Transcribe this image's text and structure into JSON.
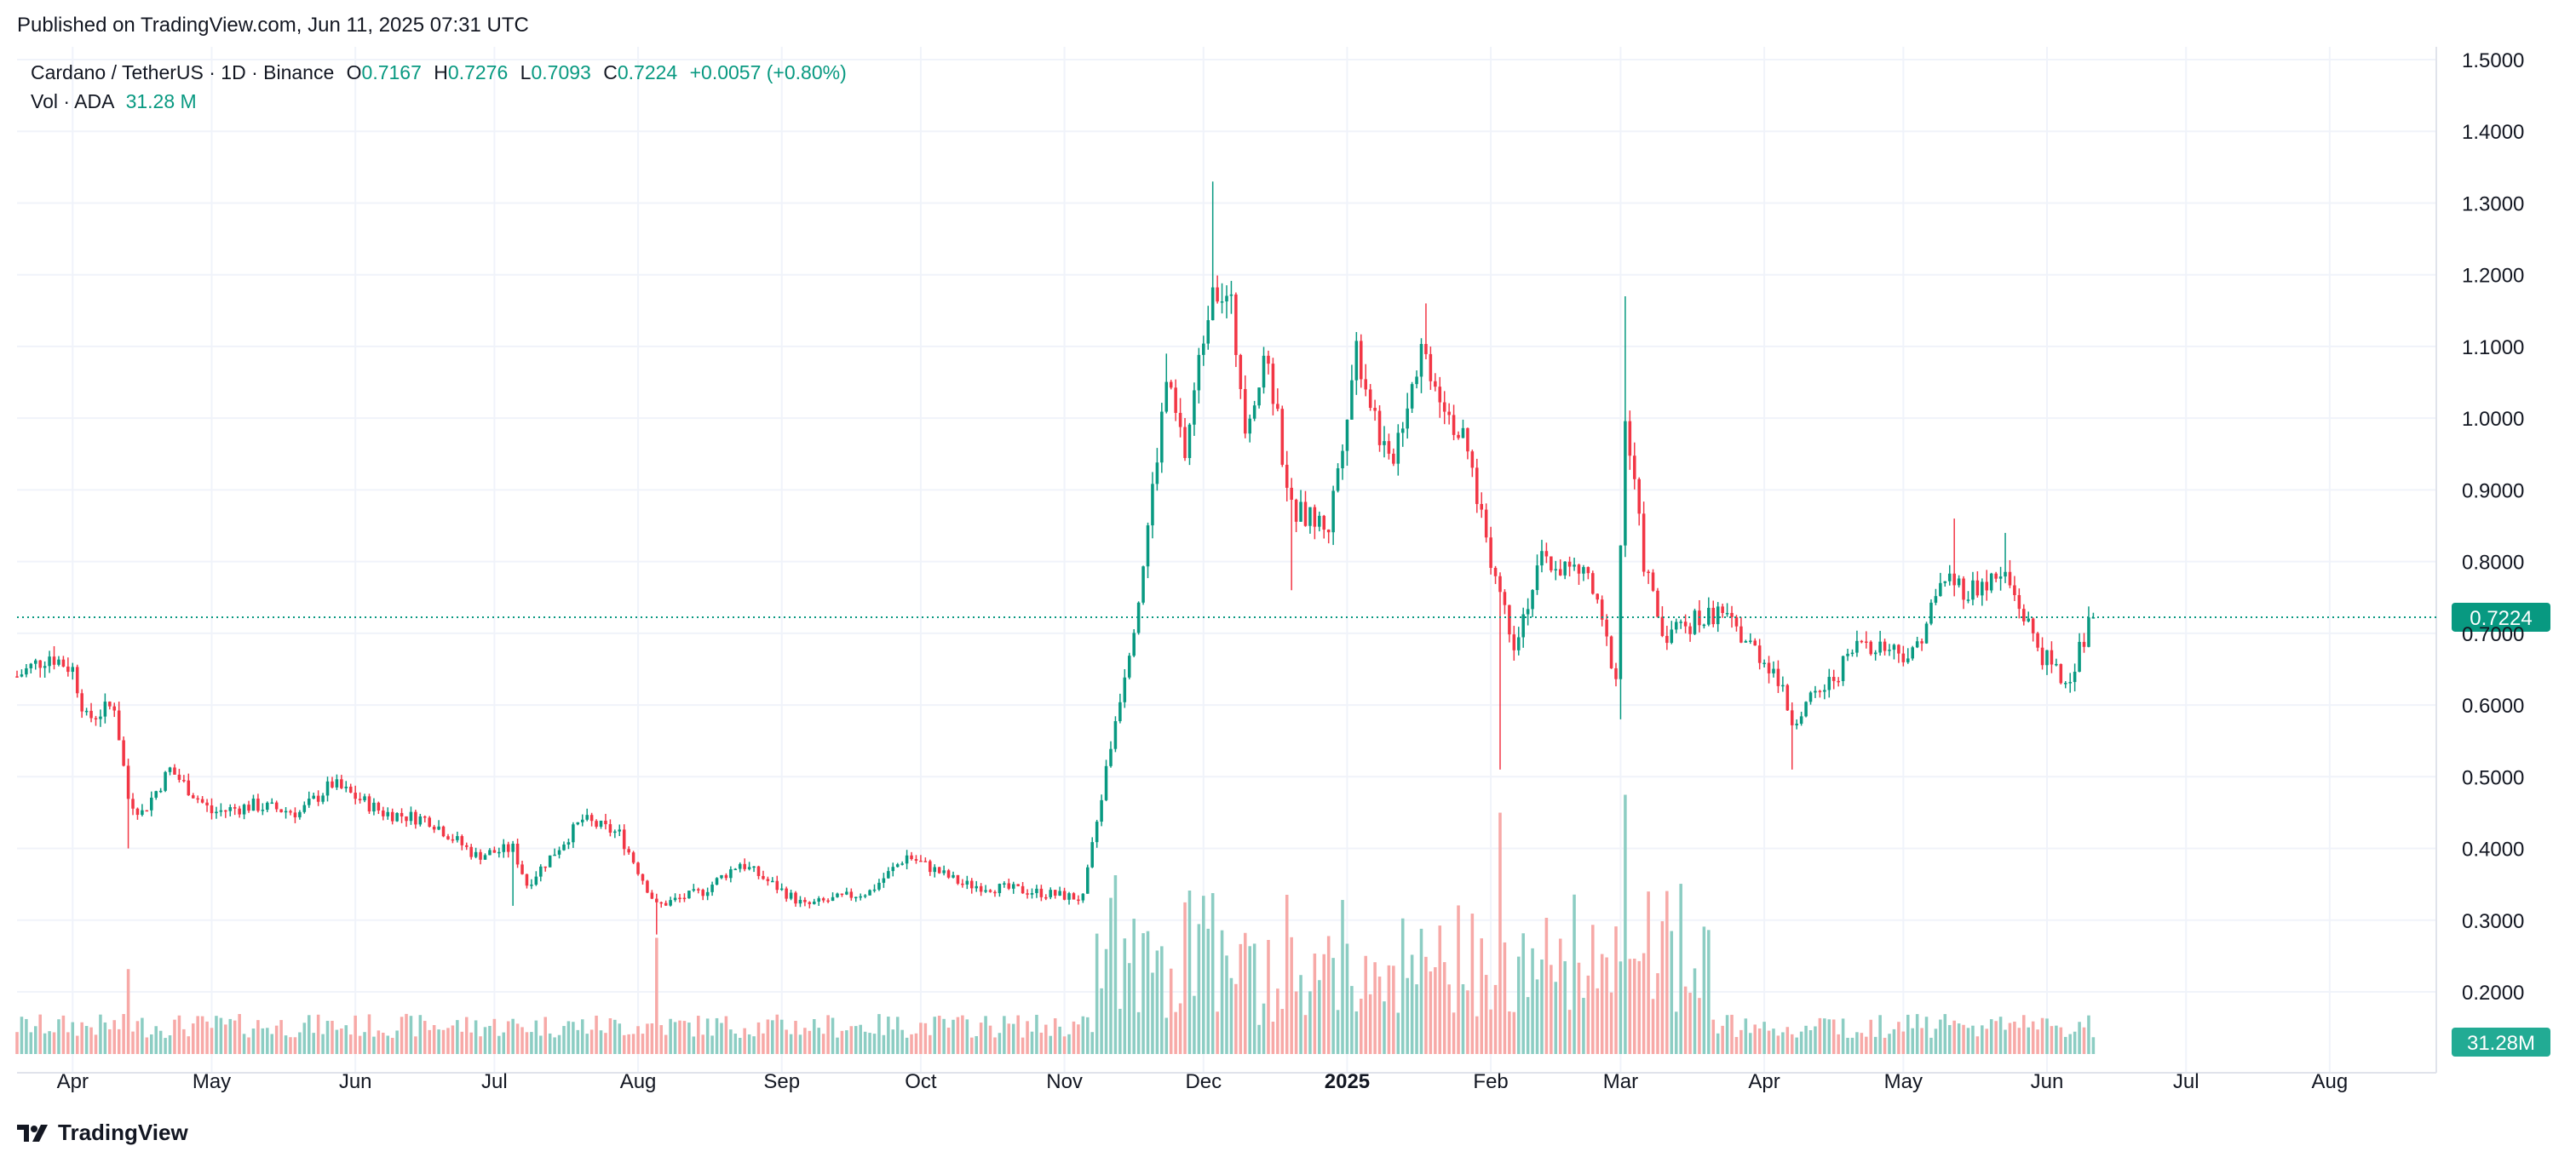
{
  "header": {
    "published": "Published on TradingView.com, Jun 11, 2025 07:31 UTC"
  },
  "legend": {
    "symbol": "Cardano / TetherUS · 1D · Binance",
    "open_key": "O",
    "open": "0.7167",
    "high_key": "H",
    "high": "0.7276",
    "low_key": "L",
    "low": "0.7093",
    "close_key": "C",
    "close": "0.7224",
    "change": "+0.0057 (+0.80%)",
    "vol_label": "Vol · ADA",
    "vol_value": "31.28 M"
  },
  "footer": {
    "brand": "TradingView"
  },
  "colors": {
    "up": "#089981",
    "down": "#F23645",
    "up_vol": "#8CCDC3",
    "down_vol": "#F7A9A7",
    "grid": "#F0F3FA",
    "last_price": "#089981"
  },
  "chart_data": {
    "type": "candlestick",
    "title": "Cardano / TetherUS · 1D · Binance",
    "price_axis": {
      "min": 0.2,
      "max": 1.5,
      "ticks": [
        "0.2000",
        "0.3000",
        "0.4000",
        "0.5000",
        "0.6000",
        "0.7000",
        "0.8000",
        "0.9000",
        "1.0000",
        "1.1000",
        "1.2000",
        "1.3000",
        "1.4000",
        "1.5000"
      ]
    },
    "time_axis": {
      "start": "2024-03-20",
      "end": "2025-08-24",
      "ticks": [
        {
          "date": "2024-04-01",
          "label": "Apr",
          "bold": false
        },
        {
          "date": "2024-05-01",
          "label": "May",
          "bold": false
        },
        {
          "date": "2024-06-01",
          "label": "Jun",
          "bold": false
        },
        {
          "date": "2024-07-01",
          "label": "Jul",
          "bold": false
        },
        {
          "date": "2024-08-01",
          "label": "Aug",
          "bold": false
        },
        {
          "date": "2024-09-01",
          "label": "Sep",
          "bold": false
        },
        {
          "date": "2024-10-01",
          "label": "Oct",
          "bold": false
        },
        {
          "date": "2024-11-01",
          "label": "Nov",
          "bold": false
        },
        {
          "date": "2024-12-01",
          "label": "Dec",
          "bold": false
        },
        {
          "date": "2025-01-01",
          "label": "2025",
          "bold": true
        },
        {
          "date": "2025-02-01",
          "label": "Feb",
          "bold": false
        },
        {
          "date": "2025-03-01",
          "label": "Mar",
          "bold": false
        },
        {
          "date": "2025-04-01",
          "label": "Apr",
          "bold": false
        },
        {
          "date": "2025-05-01",
          "label": "May",
          "bold": false
        },
        {
          "date": "2025-06-01",
          "label": "Jun",
          "bold": false
        },
        {
          "date": "2025-07-01",
          "label": "Jul",
          "bold": false
        },
        {
          "date": "2025-08-01",
          "label": "Aug",
          "bold": false
        }
      ]
    },
    "last_price": 0.7224,
    "last_price_label": "0.7224",
    "last_volume_label": "31.28M",
    "close_path": [
      {
        "date": "2024-03-20",
        "close": 0.64
      },
      {
        "date": "2024-03-27",
        "close": 0.67
      },
      {
        "date": "2024-04-01",
        "close": 0.65
      },
      {
        "date": "2024-04-04",
        "close": 0.58
      },
      {
        "date": "2024-04-10",
        "close": 0.6
      },
      {
        "date": "2024-04-13",
        "close": 0.47
      },
      {
        "date": "2024-04-16",
        "close": 0.45
      },
      {
        "date": "2024-04-22",
        "close": 0.51
      },
      {
        "date": "2024-05-01",
        "close": 0.45
      },
      {
        "date": "2024-05-10",
        "close": 0.46
      },
      {
        "date": "2024-05-20",
        "close": 0.45
      },
      {
        "date": "2024-05-27",
        "close": 0.49
      },
      {
        "date": "2024-06-07",
        "close": 0.45
      },
      {
        "date": "2024-06-17",
        "close": 0.44
      },
      {
        "date": "2024-06-27",
        "close": 0.39
      },
      {
        "date": "2024-07-05",
        "close": 0.4
      },
      {
        "date": "2024-07-08",
        "close": 0.35
      },
      {
        "date": "2024-07-20",
        "close": 0.44
      },
      {
        "date": "2024-07-28",
        "close": 0.42
      },
      {
        "date": "2024-08-05",
        "close": 0.32
      },
      {
        "date": "2024-08-15",
        "close": 0.34
      },
      {
        "date": "2024-08-23",
        "close": 0.38
      },
      {
        "date": "2024-09-06",
        "close": 0.32
      },
      {
        "date": "2024-09-20",
        "close": 0.34
      },
      {
        "date": "2024-09-28",
        "close": 0.39
      },
      {
        "date": "2024-10-10",
        "close": 0.35
      },
      {
        "date": "2024-10-25",
        "close": 0.34
      },
      {
        "date": "2024-11-05",
        "close": 0.33
      },
      {
        "date": "2024-11-12",
        "close": 0.58
      },
      {
        "date": "2024-11-17",
        "close": 0.75
      },
      {
        "date": "2024-11-23",
        "close": 1.05
      },
      {
        "date": "2024-11-27",
        "close": 0.95
      },
      {
        "date": "2024-12-03",
        "close": 1.2
      },
      {
        "date": "2024-12-07",
        "close": 1.15
      },
      {
        "date": "2024-12-10",
        "close": 1.0
      },
      {
        "date": "2024-12-15",
        "close": 1.08
      },
      {
        "date": "2024-12-20",
        "close": 0.87
      },
      {
        "date": "2024-12-28",
        "close": 0.85
      },
      {
        "date": "2025-01-03",
        "close": 1.1
      },
      {
        "date": "2025-01-10",
        "close": 0.93
      },
      {
        "date": "2025-01-17",
        "close": 1.1
      },
      {
        "date": "2025-01-27",
        "close": 0.95
      },
      {
        "date": "2025-02-02",
        "close": 0.78
      },
      {
        "date": "2025-02-06",
        "close": 0.69
      },
      {
        "date": "2025-02-12",
        "close": 0.8
      },
      {
        "date": "2025-02-22",
        "close": 0.78
      },
      {
        "date": "2025-02-28",
        "close": 0.64
      },
      {
        "date": "2025-03-02",
        "close": 1.0
      },
      {
        "date": "2025-03-06",
        "close": 0.8
      },
      {
        "date": "2025-03-10",
        "close": 0.7
      },
      {
        "date": "2025-03-22",
        "close": 0.73
      },
      {
        "date": "2025-04-03",
        "close": 0.65
      },
      {
        "date": "2025-04-07",
        "close": 0.58
      },
      {
        "date": "2025-04-15",
        "close": 0.63
      },
      {
        "date": "2025-04-22",
        "close": 0.69
      },
      {
        "date": "2025-05-03",
        "close": 0.67
      },
      {
        "date": "2025-05-10",
        "close": 0.78
      },
      {
        "date": "2025-05-15",
        "close": 0.76
      },
      {
        "date": "2025-05-23",
        "close": 0.78
      },
      {
        "date": "2025-05-31",
        "close": 0.67
      },
      {
        "date": "2025-06-05",
        "close": 0.63
      },
      {
        "date": "2025-06-11",
        "close": 0.7224
      }
    ],
    "notable_wicks": [
      {
        "date": "2024-04-13",
        "low": 0.4
      },
      {
        "date": "2024-07-05",
        "low": 0.32
      },
      {
        "date": "2024-08-05",
        "low": 0.28
      },
      {
        "date": "2024-11-23",
        "high": 1.09
      },
      {
        "date": "2024-12-03",
        "high": 1.33
      },
      {
        "date": "2024-12-20",
        "low": 0.76
      },
      {
        "date": "2025-01-18",
        "high": 1.16
      },
      {
        "date": "2025-02-03",
        "low": 0.51
      },
      {
        "date": "2025-03-02",
        "high": 1.17
      },
      {
        "date": "2025-03-01",
        "low": 0.58
      },
      {
        "date": "2025-04-07",
        "low": 0.51
      },
      {
        "date": "2025-05-12",
        "high": 0.86
      },
      {
        "date": "2025-05-23",
        "high": 0.84
      }
    ],
    "volume": {
      "baseline_millions": 30,
      "spikes_millions": [
        {
          "date": "2024-04-13",
          "value": 95
        },
        {
          "date": "2024-08-05",
          "value": 130
        },
        {
          "date": "2024-11-12",
          "value": 200
        },
        {
          "date": "2024-12-03",
          "value": 180
        },
        {
          "date": "2025-02-03",
          "value": 270
        },
        {
          "date": "2025-03-02",
          "value": 290
        }
      ]
    }
  }
}
